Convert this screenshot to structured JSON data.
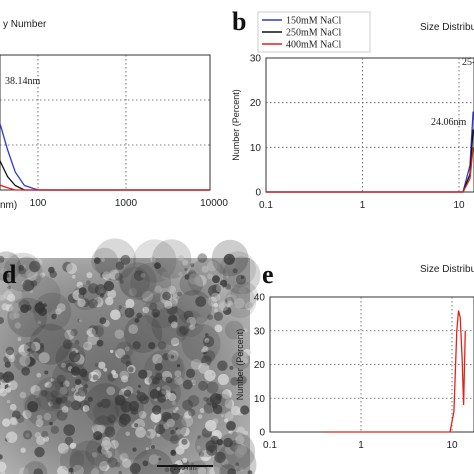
{
  "colors": {
    "s150": "#2a3bd6",
    "s250": "#111111",
    "s400": "#e0221c",
    "grid": "#555555",
    "axis": "#333333"
  },
  "chart_data": [
    {
      "id": "a",
      "panel_letter": "",
      "type": "line",
      "title": "y Number",
      "xlabel": "nm)",
      "ylabel": "",
      "x_scale": "log",
      "xlim": [
        1,
        10000
      ],
      "ylim": [
        0,
        30
      ],
      "x_ticks": [
        "100",
        "1000",
        "10000"
      ],
      "grid": true,
      "annotations": [
        {
          "text": "38.14nm"
        }
      ],
      "series": [
        {
          "key": "s150",
          "x": [
            1,
            20,
            25,
            30,
            38,
            45,
            55,
            70,
            100,
            10000
          ],
          "y": [
            0,
            26,
            24,
            20,
            14,
            9,
            4,
            1,
            0,
            0
          ]
        },
        {
          "key": "s250",
          "x": [
            1,
            20,
            25,
            30,
            38,
            45,
            55,
            70,
            100,
            10000
          ],
          "y": [
            0,
            18,
            14,
            10,
            6,
            3,
            1,
            0,
            0,
            0
          ]
        },
        {
          "key": "s400",
          "x": [
            1,
            20,
            25,
            30,
            38,
            45,
            55,
            70,
            100,
            10000
          ],
          "y": [
            0,
            6,
            4,
            2.5,
            1,
            0.5,
            0,
            0,
            0,
            0
          ]
        }
      ]
    },
    {
      "id": "b",
      "panel_letter": "b",
      "type": "line",
      "title": "Size Distribu",
      "xlabel": "",
      "ylabel": "Number (Percent)",
      "x_scale": "log",
      "xlim": [
        0.1,
        14
      ],
      "ylim": [
        0,
        30
      ],
      "x_ticks": [
        "0.1",
        "1",
        "10"
      ],
      "y_ticks": [
        "0",
        "10",
        "20",
        "30"
      ],
      "grid": true,
      "annotations": [
        {
          "text": "24.06nm"
        },
        {
          "text": "25-"
        }
      ],
      "legend": [
        "150mM NaCl",
        "250mM NaCl",
        "400mM NaCl"
      ],
      "series": [
        {
          "key": "s150",
          "name": "150mM NaCl",
          "x": [
            0.1,
            11,
            13,
            14
          ],
          "y": [
            0,
            0,
            6,
            18
          ]
        },
        {
          "key": "s250",
          "name": "250mM NaCl",
          "x": [
            0.1,
            11,
            13,
            14
          ],
          "y": [
            0,
            0,
            4,
            14
          ]
        },
        {
          "key": "s400",
          "name": "400mM NaCl",
          "x": [
            0.1,
            11,
            13,
            14
          ],
          "y": [
            0,
            0,
            3,
            10
          ]
        }
      ]
    },
    {
      "id": "e",
      "panel_letter": "e",
      "type": "line",
      "title": "Size Distribu",
      "xlabel": "",
      "ylabel": "Number (Percent)",
      "x_scale": "log",
      "xlim": [
        0.1,
        14
      ],
      "ylim": [
        0,
        40
      ],
      "x_ticks": [
        "0.1",
        "1",
        "10"
      ],
      "y_ticks": [
        "0",
        "10",
        "20",
        "30",
        "40"
      ],
      "grid": true,
      "series": [
        {
          "key": "s400",
          "x": [
            0.4,
            9.5,
            10.5,
            11.3,
            11.8,
            12.3,
            12.9,
            13.4,
            14
          ],
          "y": [
            0,
            0,
            6,
            30,
            36,
            34,
            22,
            8,
            30
          ]
        }
      ]
    }
  ],
  "micrograph": {
    "panel_letter": "d",
    "scale_bar": "200 nm"
  }
}
